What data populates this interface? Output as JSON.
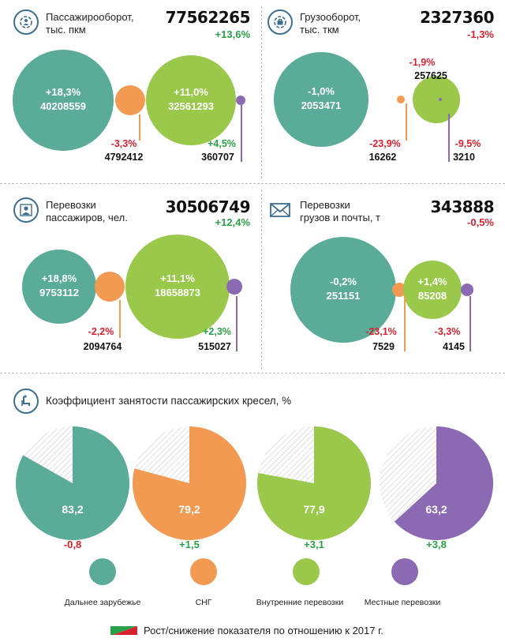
{
  "colors": {
    "far_abroad": "#5aab98",
    "cis": "#f39a52",
    "domestic": "#99c84a",
    "local": "#8b6ab3",
    "positive": "#2aa048",
    "negative": "#d8212f"
  },
  "panels": [
    {
      "icon": "passenger-turnover-icon",
      "title_line1": "Пассажирооборот,",
      "title_line2": "тыс. пкм",
      "total": "77562265",
      "total_delta": "+13,6%",
      "bubbles": [
        {
          "segment": "far_abroad",
          "value": "40208559",
          "change": "+18,3%"
        },
        {
          "segment": "cis",
          "value": "4792412",
          "change": "-3,3%"
        },
        {
          "segment": "domestic",
          "value": "32561293",
          "change": "+11,0%"
        },
        {
          "segment": "local",
          "value": "360707",
          "change": "+4,5%"
        }
      ]
    },
    {
      "icon": "cargo-turnover-icon",
      "title_line1": "Грузооборот,",
      "title_line2": "тыс. ткм",
      "total": "2327360",
      "total_delta": "-1,3%",
      "bubbles": [
        {
          "segment": "far_abroad",
          "value": "2053471",
          "change": "-1,0%"
        },
        {
          "segment": "cis",
          "value": "16262",
          "change": "-23,9%"
        },
        {
          "segment": "domestic",
          "value": "257625",
          "change": "-1,9%"
        },
        {
          "segment": "local",
          "value": "3210",
          "change": "-9,5%"
        }
      ]
    },
    {
      "icon": "passenger-icon",
      "title_line1": "Перевозки",
      "title_line2": "пассажиров, чел.",
      "total": "30506749",
      "total_delta": "+12,4%",
      "bubbles": [
        {
          "segment": "far_abroad",
          "value": "9753112",
          "change": "+18,8%"
        },
        {
          "segment": "cis",
          "value": "2094764",
          "change": "-2,2%"
        },
        {
          "segment": "domestic",
          "value": "18658873",
          "change": "+11,1%"
        },
        {
          "segment": "local",
          "value": "515027",
          "change": "+2,3%"
        }
      ]
    },
    {
      "icon": "mail-envelope-icon",
      "title_line1": "Перевозки",
      "title_line2": "грузов и почты, т",
      "total": "343888",
      "total_delta": "-0,5%",
      "bubbles": [
        {
          "segment": "far_abroad",
          "value": "251151",
          "change": "-0,2%"
        },
        {
          "segment": "cis",
          "value": "7529",
          "change": "-23,1%"
        },
        {
          "segment": "domestic",
          "value": "85208",
          "change": "+1,4%"
        },
        {
          "segment": "local",
          "value": "4145",
          "change": "-3,3%"
        }
      ]
    }
  ],
  "chart_data": {
    "type": "pie",
    "title": "Коэффициент занятости пассажирских кресел, %",
    "categories": [
      "Дальнее зарубежье",
      "СНГ",
      "Внутренние перевозки",
      "Местные перевозки"
    ],
    "values": [
      "83,2",
      "79,2",
      "77,9",
      "63,2"
    ],
    "changes": [
      "-0,8",
      "+1,5",
      "+3,1",
      "+3,8"
    ],
    "segments": [
      "far_abroad",
      "cis",
      "domestic",
      "local"
    ],
    "icon": "seat-icon"
  },
  "legend": [
    {
      "segment": "far_abroad",
      "label": "Дальнее зарубежье"
    },
    {
      "segment": "cis",
      "label": "СНГ"
    },
    {
      "segment": "domestic",
      "label": "Внутренние перевозки"
    },
    {
      "segment": "local",
      "label": "Местные перевозки"
    }
  ],
  "footer": {
    "text": "Рост/снижение показателя по отношению к 2017 г."
  }
}
